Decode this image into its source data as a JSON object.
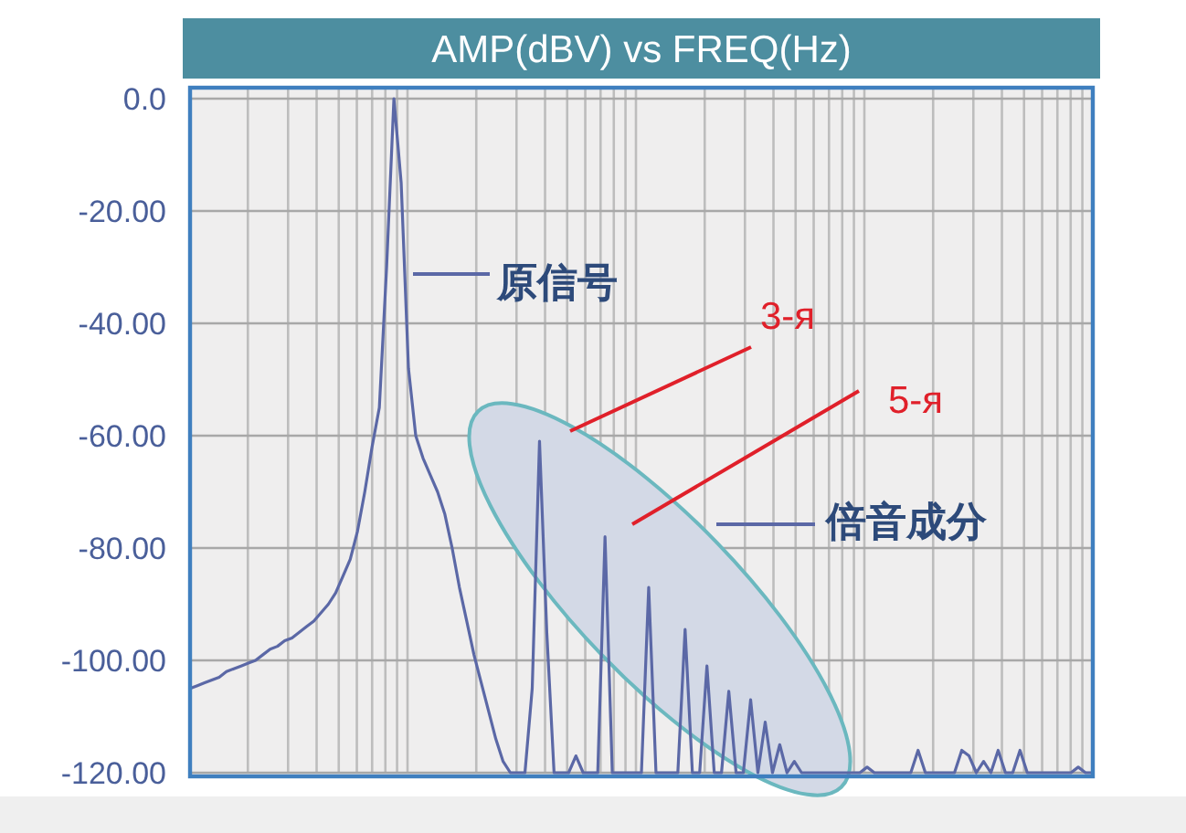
{
  "chart_data": {
    "type": "line",
    "title": "AMP(dBV) vs FREQ(Hz)",
    "categories": [
      null,
      null,
      null,
      null,
      null,
      null,
      null,
      null,
      null,
      null,
      null,
      null,
      null,
      null,
      null,
      null,
      null,
      null,
      null,
      null,
      null,
      null,
      null,
      null,
      null,
      null,
      null,
      null,
      null,
      null,
      null,
      null,
      null,
      null,
      null,
      null,
      null,
      null,
      null,
      null,
      null,
      null,
      null,
      null,
      null,
      null,
      null,
      null,
      null,
      null,
      null,
      null,
      null,
      null,
      null,
      null,
      null,
      null,
      null,
      null,
      null,
      null,
      null,
      null,
      null,
      null,
      null,
      null,
      null,
      null,
      null,
      null,
      null,
      null,
      null,
      null,
      null,
      null,
      null,
      null,
      null,
      null,
      null,
      null,
      null,
      null,
      null,
      null,
      null,
      null,
      null,
      null,
      null,
      null,
      null,
      null,
      null,
      null,
      null,
      null,
      null,
      null,
      null,
      null,
      null,
      null,
      null,
      null,
      null,
      null,
      null,
      null,
      null,
      null,
      null,
      null,
      null,
      null,
      null,
      null,
      null,
      null,
      null,
      null,
      null
    ],
    "series": [
      {
        "color": "#5b68a6",
        "values": [
          -105,
          -104.5,
          -104,
          -103.5,
          -103,
          -102,
          -101.5,
          -101,
          -100.5,
          -100,
          -99,
          -98,
          -97.5,
          -96.5,
          -96,
          -95,
          -94,
          -93,
          -91.5,
          -90,
          -88,
          -85,
          -82,
          -77,
          -70,
          -62,
          -55,
          -30,
          0,
          -15,
          -48,
          -60,
          -64,
          -67,
          -70,
          -74,
          -80,
          -87,
          -93,
          -99,
          -104,
          -109,
          -114,
          -118,
          -120,
          -120,
          -120,
          -105,
          -61,
          -95,
          -120,
          -120,
          -120,
          -117,
          -120,
          -120,
          -120,
          -78,
          -120,
          -120,
          -120,
          -120,
          -120,
          -87,
          -120,
          -120,
          -120,
          -120,
          -94.5,
          -120,
          -120,
          -101,
          -120,
          -120,
          -105.5,
          -120,
          -120,
          -107,
          -120,
          -111,
          -120,
          -115,
          -120,
          -118,
          -120,
          -120,
          -120,
          -120,
          -120,
          -120,
          -120,
          -120,
          -120,
          -119,
          -120,
          -120,
          -120,
          -120,
          -120,
          -120,
          -116,
          -120,
          -120,
          -120,
          -120,
          -120,
          -116,
          -117,
          -120,
          -118,
          -120,
          -116,
          -120,
          -120,
          -116,
          -120,
          -120,
          -120,
          -120,
          -120,
          -120,
          -120,
          -119,
          -120,
          -120
        ]
      }
    ],
    "ylim": [
      -120,
      0
    ],
    "yticks": [
      {
        "value": 0,
        "label": "0.0"
      },
      {
        "value": -20,
        "label": "-20.00"
      },
      {
        "value": -40,
        "label": "-40.00"
      },
      {
        "value": -60,
        "label": "-60.00"
      },
      {
        "value": -80,
        "label": "-80.00"
      },
      {
        "value": -100,
        "label": "-100.00"
      },
      {
        "value": -120,
        "label": "-120.00"
      }
    ],
    "tick_labels": "y",
    "grid": true,
    "annotations": [
      "原信号",
      "3-я",
      "5-я",
      "倍音成分"
    ]
  }
}
